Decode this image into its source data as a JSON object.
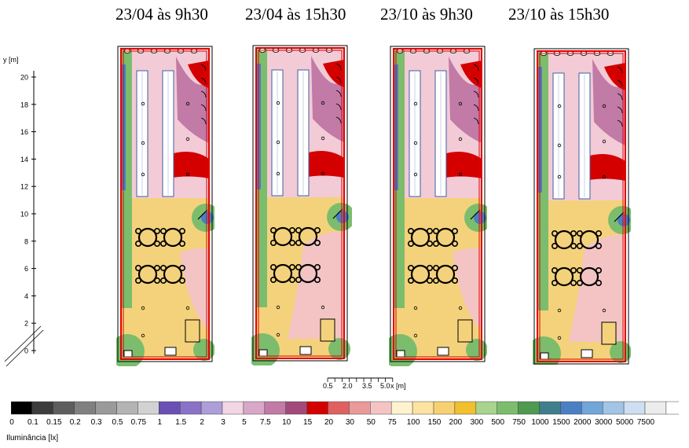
{
  "titles": [
    "23/04 às 9h30",
    "23/04 às 15h30",
    "23/10 às 9h30",
    "23/10 às 15h30"
  ],
  "y_axis": {
    "label": "y [m]",
    "ticks": [
      "20",
      "18",
      "16",
      "14",
      "12",
      "10",
      "8",
      "6",
      "4",
      "2",
      "0"
    ]
  },
  "scale_bar": {
    "ticks": [
      "0.5",
      "2.0",
      "3.5",
      "5.0"
    ],
    "unit": "x [m]"
  },
  "legend": {
    "title": "Iluminância [lx]",
    "labels": [
      "0",
      "0.1",
      "0.15",
      "0.2",
      "0.3",
      "0.5",
      "0.75",
      "1",
      "1.5",
      "2",
      "3",
      "5",
      "7.5",
      "10",
      "15",
      "20",
      "30",
      "50",
      "75",
      "100",
      "150",
      "200",
      "300",
      "500",
      "750",
      "1000",
      "1500",
      "2000",
      "3000",
      "5000",
      "7500"
    ],
    "colors": [
      "#000000",
      "#3c3c3c",
      "#5e5e5e",
      "#808080",
      "#9a9a9a",
      "#b4b4b4",
      "#d2d2d2",
      "#6b4fb5",
      "#8a72c7",
      "#ad9dd8",
      "#f2d6e3",
      "#d9a7c8",
      "#c27aa6",
      "#a24a7b",
      "#d40000",
      "#e06060",
      "#ea9a9a",
      "#f4c4c4",
      "#fff3cf",
      "#fde3a0",
      "#f7d070",
      "#f1c02e",
      "#a8d48e",
      "#7bbd6c",
      "#4e9a50",
      "#3f7f8c",
      "#4a7fc4",
      "#72a5d8",
      "#a2c4e6",
      "#cddff2",
      "#ececec",
      "#ffffff"
    ]
  }
}
